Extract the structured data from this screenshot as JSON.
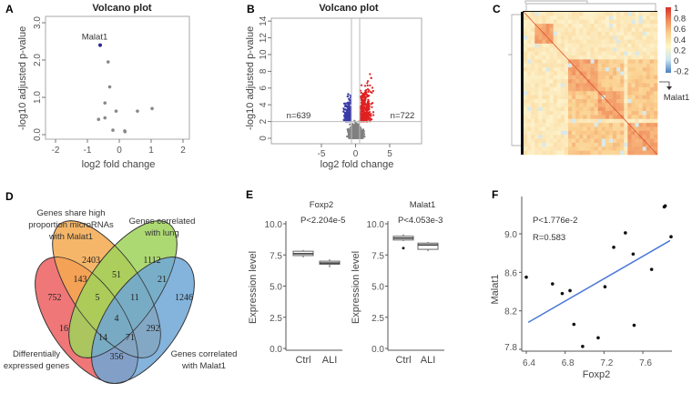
{
  "panel_labels": [
    "A",
    "B",
    "C",
    "D",
    "E",
    "F"
  ],
  "chart_data": [
    {
      "panel": "A",
      "type": "scatter",
      "title": "Volcano plot",
      "xlabel": "log2 fold change",
      "ylabel": "-log10 adjusted p-value",
      "xlim": [
        -2,
        2
      ],
      "ylim": [
        0,
        3
      ],
      "xticks": [
        "-2",
        "-1",
        "0",
        "1",
        "2"
      ],
      "yticks": [
        "0.0",
        "1.0",
        "2.0",
        "3.0"
      ],
      "highlight": {
        "label": "Malat1",
        "x": -0.6,
        "y": 2.4,
        "color": "#2b2b8c"
      },
      "points": [
        [
          -0.35,
          1.95
        ],
        [
          -0.3,
          1.28
        ],
        [
          -0.45,
          0.85
        ],
        [
          -0.1,
          0.63
        ],
        [
          0.57,
          0.63
        ],
        [
          1.03,
          0.7
        ],
        [
          -0.45,
          0.45
        ],
        [
          -0.65,
          0.41
        ],
        [
          -0.2,
          0.12
        ],
        [
          0.17,
          0.1
        ],
        [
          0.18,
          0.08
        ]
      ],
      "point_color": "#888888"
    },
    {
      "panel": "B",
      "type": "scatter",
      "title": "Volcano plot",
      "xlabel": "log2 fold change",
      "ylabel": "-log10 adjusted p-value",
      "xlim": [
        -9,
        10
      ],
      "ylim": [
        0,
        14
      ],
      "xticks": [
        "-5",
        "0",
        "5"
      ],
      "yticks": [
        "0",
        "2",
        "4",
        "6",
        "8",
        "10",
        "12",
        "14"
      ],
      "fc_threshold": 0.6,
      "p_threshold": 2,
      "down_count_label": "n=639",
      "up_count_label": "n=722",
      "down_count": 639,
      "up_count": 722,
      "colors": {
        "down": "#3a3aa8",
        "up": "#e02020",
        "ns": "#808080"
      }
    },
    {
      "panel": "C",
      "type": "heatmap",
      "colorbar_ticks": [
        "1",
        "0.8",
        "0.6",
        "0.4",
        "0.2",
        "0",
        "-0.2"
      ],
      "colorbar_range": [
        -0.2,
        1
      ],
      "annotation": "Malat1"
    },
    {
      "panel": "D",
      "type": "venn",
      "sets": [
        {
          "label_lines": [
            "Differentially",
            "expressed genes"
          ],
          "color": "#ec5f5f"
        },
        {
          "label_lines": [
            "Genes share high",
            "proportion microRNAs",
            "with Malat1"
          ],
          "color": "#f5a94f"
        },
        {
          "label_lines": [
            "Genes correlated",
            "with lung"
          ],
          "color": "#9fd25a"
        },
        {
          "label_lines": [
            "Genes correlated",
            "with Malat1"
          ],
          "color": "#6ea6d6"
        }
      ],
      "regions": [
        {
          "sets": "O",
          "value": "2403"
        },
        {
          "sets": "G",
          "value": "1112"
        },
        {
          "sets": "RO",
          "value": "143"
        },
        {
          "sets": "OG",
          "value": "51"
        },
        {
          "sets": "GB",
          "value": "21"
        },
        {
          "sets": "R",
          "value": "752"
        },
        {
          "sets": "ROG",
          "value": "5"
        },
        {
          "sets": "OGB",
          "value": "11"
        },
        {
          "sets": "B",
          "value": "1246"
        },
        {
          "sets": "ROGB",
          "value": "4"
        },
        {
          "sets": "RG",
          "value": "16"
        },
        {
          "sets": "OB",
          "value": "292"
        },
        {
          "sets": "RGB",
          "value": "14"
        },
        {
          "sets": "ROB",
          "value": "71"
        },
        {
          "sets": "RB",
          "value": "356"
        }
      ]
    },
    {
      "panel": "E",
      "type": "box",
      "ylabel": "Expression level",
      "yticks": [
        "0.0",
        "2.5",
        "5.0",
        "7.5",
        "10.0"
      ],
      "ylim": [
        0,
        10
      ],
      "categories": [
        "Ctrl",
        "ALI"
      ],
      "subplots": [
        {
          "title": "Foxp2",
          "pvalue": "P<2.204e-5",
          "boxes": [
            {
              "min": 7.3,
              "q1": 7.45,
              "median": 7.6,
              "q3": 7.8,
              "max": 7.9,
              "outliers": []
            },
            {
              "min": 6.5,
              "q1": 6.75,
              "median": 6.85,
              "q3": 7.0,
              "max": 7.15,
              "outliers": []
            }
          ]
        },
        {
          "title": "Malat1",
          "pvalue": "P<4.053e-3",
          "boxes": [
            {
              "min": 8.6,
              "q1": 8.7,
              "median": 8.85,
              "q3": 9.0,
              "max": 9.15,
              "outliers": [
                8.05
              ]
            },
            {
              "min": 7.8,
              "q1": 7.95,
              "median": 8.3,
              "q3": 8.45,
              "max": 8.55,
              "outliers": []
            }
          ]
        }
      ]
    },
    {
      "panel": "F",
      "type": "scatter",
      "xlabel": "Foxp2",
      "ylabel": "Malat1",
      "xlim": [
        6.35,
        7.95
      ],
      "ylim": [
        7.8,
        9.35
      ],
      "xticks": [
        "6.4",
        "6.8",
        "7.2",
        "7.6"
      ],
      "yticks": [
        "7.8",
        "8.2",
        "8.6",
        "9.0"
      ],
      "pvalue": "P<1.776e-2",
      "r": "R=0.583",
      "points": [
        [
          6.4,
          8.55
        ],
        [
          6.67,
          8.48
        ],
        [
          6.77,
          8.38
        ],
        [
          6.85,
          8.41
        ],
        [
          6.89,
          8.06
        ],
        [
          6.98,
          7.83
        ],
        [
          7.14,
          7.92
        ],
        [
          7.21,
          8.45
        ],
        [
          7.3,
          8.86
        ],
        [
          7.42,
          9.01
        ],
        [
          7.5,
          8.79
        ],
        [
          7.51,
          8.05
        ],
        [
          7.69,
          8.63
        ],
        [
          7.82,
          9.28
        ],
        [
          7.83,
          9.29
        ],
        [
          7.89,
          8.97
        ]
      ],
      "fit_line": [
        [
          6.42,
          8.08
        ],
        [
          7.88,
          8.93
        ]
      ],
      "line_color": "#4a78d8"
    }
  ]
}
